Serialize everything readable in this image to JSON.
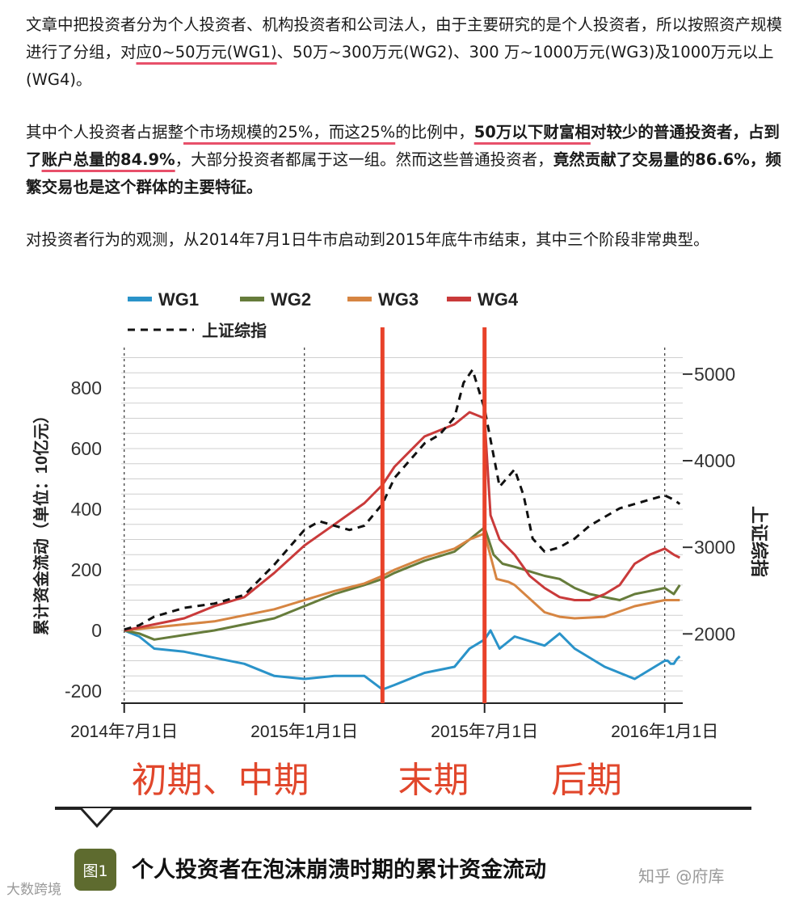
{
  "article": {
    "p1": {
      "a": "文章中把投资者分为个人投资者、机构投资者和公司法人，由于主要研究的是个人投资者，所以按照资产规模进行了分组，对",
      "b": "应0~50万元(WG1)",
      "c": "、50万~300万元(WG2)、300 万~1000万元(WG3)及1000万元以上(WG4)。"
    },
    "p2": {
      "a": "其中个人投资者占据整",
      "b": "个市场规模的25%，而这25%",
      "c": "的比例中，",
      "d": "50万以下财富相",
      "e": "对较少的普通投资者，占到了",
      "f": "账户总量的84.9%",
      "g": "，大部分投资者都属于这一组。然而这些普通投资者，",
      "h": "竟然贡献了交易量的86.6%，频繁交易也是这个群体的主要特征。"
    },
    "p3": "对投资者行为的观测，从2014年7月1日牛市启动到2015年底牛市结束，其中三个阶段非常典型。"
  },
  "chart_data": {
    "type": "line",
    "title": "",
    "ylabel": "累计资金流动（单位：10亿元）",
    "y2label": "上证综指",
    "ylim": [
      -240,
      960
    ],
    "y2lim": [
      1200,
      5400
    ],
    "yticks": [
      -200,
      0,
      200,
      400,
      600,
      800
    ],
    "y2ticks": [
      2000,
      3000,
      4000,
      5000
    ],
    "x_ticks": [
      "2014年7月1日",
      "2015年1月1日",
      "2015年7月1日",
      "2016年1月1日"
    ],
    "x_tick_months": [
      0,
      6,
      12,
      18
    ],
    "xlim": [
      -0.1,
      18.6
    ],
    "grid": "horizontal",
    "legend": "top-left",
    "vlines": [
      {
        "x": 8.6,
        "color": "#e8422a"
      },
      {
        "x": 12.0,
        "color": "#e8422a"
      }
    ],
    "phases": [
      {
        "label": "初期、中期",
        "x": 3.2
      },
      {
        "label": "末期",
        "x": 10.3
      },
      {
        "label": "后期",
        "x": 15.4
      }
    ],
    "series": [
      {
        "name": "WG1",
        "color": "#2a93c9",
        "axis": "left",
        "x": [
          0,
          0.5,
          1,
          2,
          3,
          4,
          5,
          6,
          7,
          8,
          8.6,
          9,
          10,
          11,
          11.5,
          12,
          12.2,
          12.5,
          13,
          14,
          14.5,
          15,
          16,
          17,
          18,
          18.1,
          18.2,
          18.3,
          18.4,
          18.5
        ],
        "values": [
          0,
          -20,
          -60,
          -70,
          -90,
          -110,
          -150,
          -160,
          -150,
          -150,
          -195,
          -180,
          -140,
          -120,
          -60,
          -30,
          0,
          -60,
          -20,
          -50,
          -10,
          -60,
          -120,
          -160,
          -100,
          -100,
          -110,
          -110,
          -95,
          -85
        ]
      },
      {
        "name": "WG2",
        "color": "#667c3b",
        "axis": "left",
        "x": [
          0,
          0.5,
          1,
          2,
          3,
          4,
          5,
          6,
          7,
          8,
          8.6,
          9,
          10,
          11,
          11.5,
          12,
          12.3,
          12.6,
          13,
          14,
          14.5,
          15,
          15.5,
          16,
          16.5,
          17,
          17.5,
          18,
          18.3,
          18.5
        ],
        "values": [
          0,
          -10,
          -30,
          -15,
          0,
          20,
          40,
          80,
          120,
          150,
          170,
          190,
          230,
          260,
          300,
          340,
          250,
          220,
          210,
          180,
          170,
          140,
          120,
          110,
          100,
          120,
          130,
          140,
          120,
          150
        ]
      },
      {
        "name": "WG3",
        "color": "#d68542",
        "axis": "left",
        "x": [
          0,
          0.5,
          1,
          2,
          3,
          4,
          5,
          6,
          7,
          8,
          8.6,
          9,
          10,
          11,
          11.5,
          12,
          12.4,
          12.8,
          13,
          14,
          14.5,
          15,
          16,
          17,
          18,
          18.5
        ],
        "values": [
          0,
          5,
          10,
          20,
          30,
          50,
          70,
          100,
          130,
          155,
          180,
          200,
          240,
          270,
          300,
          320,
          170,
          160,
          150,
          60,
          45,
          40,
          45,
          80,
          100,
          100
        ]
      },
      {
        "name": "WG4",
        "color": "#c93a3a",
        "axis": "left",
        "x": [
          0,
          0.5,
          1,
          2,
          3,
          4,
          5,
          6,
          7,
          8,
          8.6,
          9,
          10,
          11,
          11.5,
          12,
          12.2,
          12.5,
          13,
          13.5,
          14,
          14.5,
          15,
          15.5,
          16,
          16.5,
          17,
          17.5,
          18,
          18.3,
          18.5
        ],
        "values": [
          0,
          10,
          20,
          40,
          80,
          110,
          190,
          280,
          350,
          420,
          480,
          540,
          640,
          680,
          720,
          700,
          380,
          300,
          250,
          180,
          140,
          110,
          100,
          100,
          120,
          150,
          220,
          250,
          270,
          250,
          240
        ]
      },
      {
        "name": "上证综指",
        "color": "#111111",
        "dashed": true,
        "axis": "right",
        "x": [
          0,
          0.5,
          1,
          1.5,
          2,
          3,
          4,
          5,
          5.5,
          6,
          6.5,
          7,
          7.5,
          8,
          8.6,
          9,
          9.5,
          10,
          10.5,
          11,
          11.3,
          11.6,
          12,
          12.5,
          13,
          13.3,
          13.6,
          14,
          14.5,
          15,
          15.5,
          16,
          16.5,
          17,
          17.5,
          18,
          18.3,
          18.5
        ],
        "values": [
          2050,
          2100,
          2200,
          2250,
          2300,
          2350,
          2450,
          2800,
          3000,
          3200,
          3300,
          3250,
          3200,
          3250,
          3500,
          3800,
          4000,
          4200,
          4300,
          4500,
          4900,
          5050,
          4600,
          3700,
          3900,
          3600,
          3100,
          2950,
          3000,
          3100,
          3250,
          3350,
          3450,
          3500,
          3550,
          3600,
          3550,
          3500
        ]
      }
    ]
  },
  "caption": {
    "badge": "图1",
    "title": "个人投资者在泡沫崩溃时期的累计资金流动"
  },
  "watermarks": {
    "left": "大数跨境",
    "right": "知乎 @府库"
  }
}
